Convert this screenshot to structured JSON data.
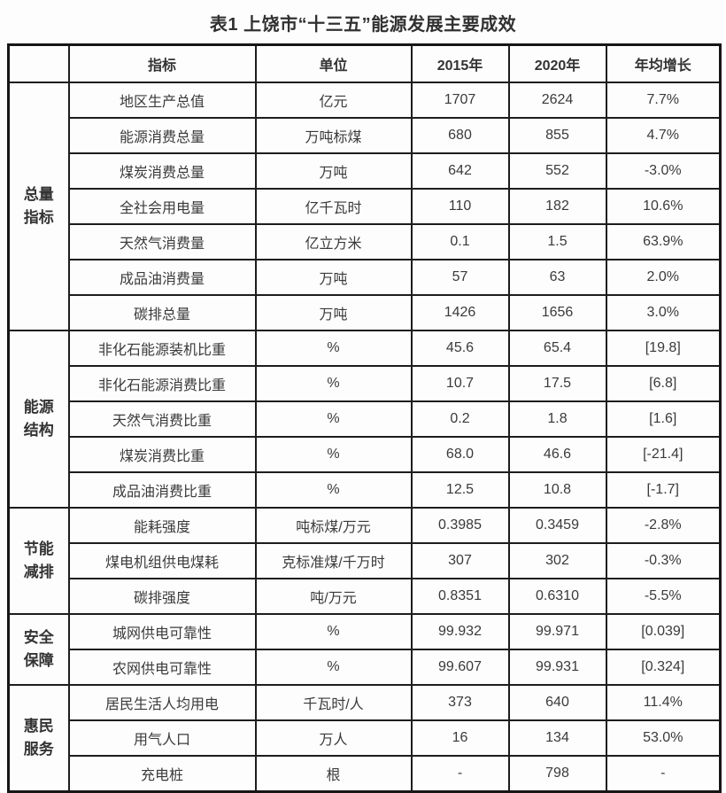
{
  "page": {
    "background_color": "#fdfdfd",
    "text_color": "#3a3a3a",
    "border_color": "#1d1d1d"
  },
  "title": "表1 上饶市“十三五”能源发展主要成效",
  "table": {
    "headers": [
      "",
      "指标",
      "单位",
      "2015年",
      "2020年",
      "年均增长"
    ],
    "groups": [
      {
        "category": "总量指标",
        "rows": [
          {
            "indicator": "地区生产总值",
            "unit": "亿元",
            "y2015": "1707",
            "y2020": "2624",
            "growth": "7.7%"
          },
          {
            "indicator": "能源消费总量",
            "unit": "万吨标煤",
            "y2015": "680",
            "y2020": "855",
            "growth": "4.7%"
          },
          {
            "indicator": "煤炭消费总量",
            "unit": "万吨",
            "y2015": "642",
            "y2020": "552",
            "growth": "-3.0%"
          },
          {
            "indicator": "全社会用电量",
            "unit": "亿千瓦时",
            "y2015": "110",
            "y2020": "182",
            "growth": "10.6%"
          },
          {
            "indicator": "天然气消费量",
            "unit": "亿立方米",
            "y2015": "0.1",
            "y2020": "1.5",
            "growth": "63.9%"
          },
          {
            "indicator": "成品油消费量",
            "unit": "万吨",
            "y2015": "57",
            "y2020": "63",
            "growth": "2.0%"
          },
          {
            "indicator": "碳排总量",
            "unit": "万吨",
            "y2015": "1426",
            "y2020": "1656",
            "growth": "3.0%"
          }
        ]
      },
      {
        "category": "能源结构",
        "rows": [
          {
            "indicator": "非化石能源装机比重",
            "unit": "%",
            "y2015": "45.6",
            "y2020": "65.4",
            "growth": "[19.8]"
          },
          {
            "indicator": "非化石能源消费比重",
            "unit": "%",
            "y2015": "10.7",
            "y2020": "17.5",
            "growth": "[6.8]"
          },
          {
            "indicator": "天然气消费比重",
            "unit": "%",
            "y2015": "0.2",
            "y2020": "1.8",
            "growth": "[1.6]"
          },
          {
            "indicator": "煤炭消费比重",
            "unit": "%",
            "y2015": "68.0",
            "y2020": "46.6",
            "growth": "[-21.4]"
          },
          {
            "indicator": "成品油消费比重",
            "unit": "%",
            "y2015": "12.5",
            "y2020": "10.8",
            "growth": "[-1.7]"
          }
        ]
      },
      {
        "category": "节能减排",
        "rows": [
          {
            "indicator": "能耗强度",
            "unit": "吨标煤/万元",
            "y2015": "0.3985",
            "y2020": "0.3459",
            "growth": "-2.8%"
          },
          {
            "indicator": "煤电机组供电煤耗",
            "unit": "克标准煤/千万时",
            "y2015": "307",
            "y2020": "302",
            "growth": "-0.3%"
          },
          {
            "indicator": "碳排强度",
            "unit": "吨/万元",
            "y2015": "0.8351",
            "y2020": "0.6310",
            "growth": "-5.5%"
          }
        ]
      },
      {
        "category": "安全保障",
        "rows": [
          {
            "indicator": "城网供电可靠性",
            "unit": "%",
            "y2015": "99.932",
            "y2020": "99.971",
            "growth": "[0.039]"
          },
          {
            "indicator": "农网供电可靠性",
            "unit": "%",
            "y2015": "99.607",
            "y2020": "99.931",
            "growth": "[0.324]"
          }
        ]
      },
      {
        "category": "惠民服务",
        "rows": [
          {
            "indicator": "居民生活人均用电",
            "unit": "千瓦时/人",
            "y2015": "373",
            "y2020": "640",
            "growth": "11.4%"
          },
          {
            "indicator": "用气人口",
            "unit": "万人",
            "y2015": "16",
            "y2020": "134",
            "growth": "53.0%"
          },
          {
            "indicator": "充电桩",
            "unit": "根",
            "y2015": "-",
            "y2020": "798",
            "growth": "-"
          }
        ]
      }
    ]
  }
}
